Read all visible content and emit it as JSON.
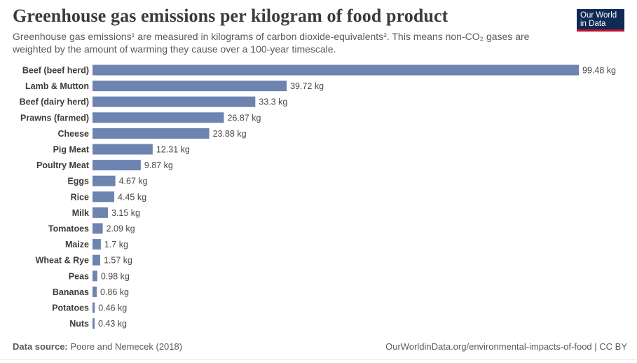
{
  "title": "Greenhouse gas emissions per kilogram of food product",
  "subtitle": "Greenhouse gas emissions¹ are measured in kilograms of carbon dioxide-equivalents². This means non-CO₂ gases are weighted by the amount of warming they cause over a 100-year timescale.",
  "logo": {
    "line1": "Our World",
    "line2": "in Data"
  },
  "footer": {
    "source_label": "Data source:",
    "source_text": "Poore and Nemecek (2018)",
    "url_text": "OurWorldinData.org/environmental-impacts-of-food | CC BY"
  },
  "colors": {
    "bar": "#6d83b0",
    "logo_bg": "#0f2a55",
    "logo_accent": "#c8102e"
  },
  "chart_data": {
    "type": "bar",
    "orientation": "horizontal",
    "categories": [
      "Beef (beef herd)",
      "Lamb & Mutton",
      "Beef (dairy herd)",
      "Prawns (farmed)",
      "Cheese",
      "Pig Meat",
      "Poultry Meat",
      "Eggs",
      "Rice",
      "Milk",
      "Tomatoes",
      "Maize",
      "Wheat & Rye",
      "Peas",
      "Bananas",
      "Potatoes",
      "Nuts"
    ],
    "values": [
      99.48,
      39.72,
      33.3,
      26.87,
      23.88,
      12.31,
      9.87,
      4.67,
      4.45,
      3.15,
      2.09,
      1.7,
      1.57,
      0.98,
      0.86,
      0.46,
      0.43
    ],
    "value_labels": [
      "99.48 kg",
      "39.72 kg",
      "33.3 kg",
      "26.87 kg",
      "23.88 kg",
      "12.31 kg",
      "9.87 kg",
      "4.67 kg",
      "4.45 kg",
      "3.15 kg",
      "2.09 kg",
      "1.7 kg",
      "1.57 kg",
      "0.98 kg",
      "0.86 kg",
      "0.46 kg",
      "0.43 kg"
    ],
    "xlim": [
      0,
      99.48
    ],
    "grid": false
  }
}
